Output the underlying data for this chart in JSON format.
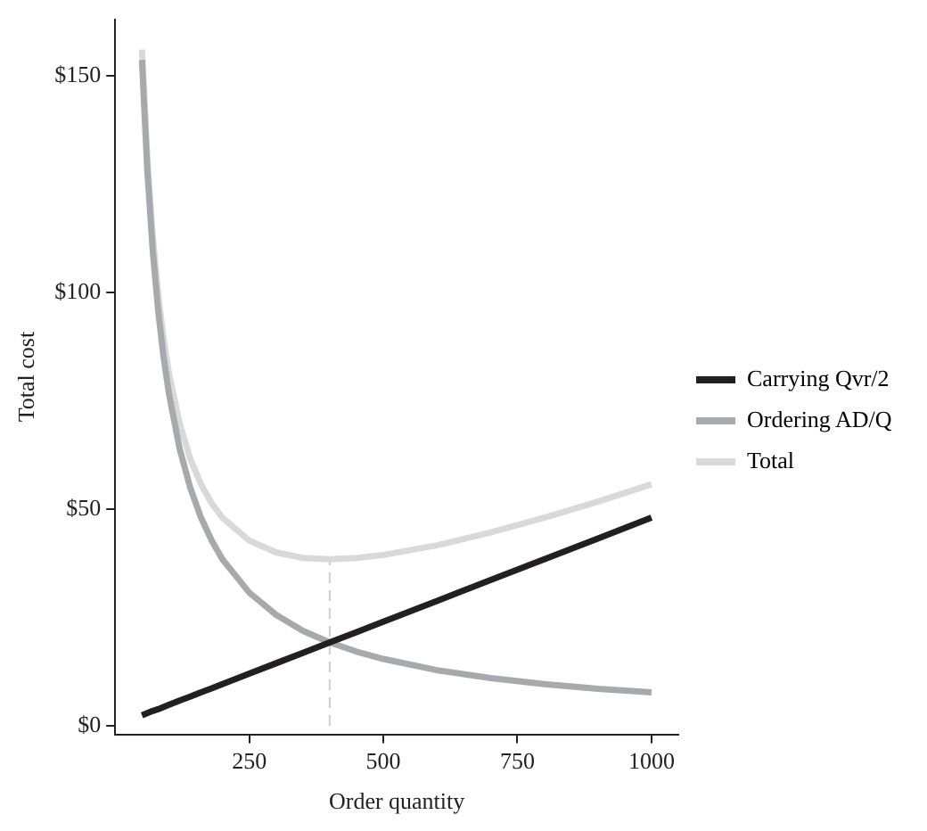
{
  "chart_data": {
    "type": "line",
    "xlabel": "Order quantity",
    "ylabel": "Total cost",
    "xlim": [
      0,
      1050
    ],
    "xticks": [
      250,
      500,
      750,
      1000
    ],
    "ylim": [
      -2,
      163
    ],
    "yticks": [
      {
        "value": 0,
        "label": "$0"
      },
      {
        "value": 50,
        "label": "$50"
      },
      {
        "value": 100,
        "label": "$100"
      },
      {
        "value": 150,
        "label": "$150"
      }
    ],
    "grid": false,
    "legend": "right",
    "marker": "none",
    "x": [
      50,
      60,
      70,
      80,
      90,
      100,
      120,
      140,
      160,
      180,
      200,
      250,
      300,
      350,
      400,
      450,
      500,
      600,
      700,
      800,
      900,
      1000
    ],
    "series": [
      {
        "name": "Carrying Qvr/2",
        "color": "#231f20",
        "values": [
          2.4,
          2.9,
          3.4,
          3.8,
          4.3,
          4.8,
          5.8,
          6.7,
          7.7,
          8.6,
          9.6,
          12,
          14.4,
          16.8,
          19.2,
          21.6,
          24,
          28.8,
          33.6,
          38.4,
          43.2,
          48
        ]
      },
      {
        "name": "Ordering AD/Q",
        "color": "#a7a9ac",
        "values": [
          153.6,
          128,
          109.7,
          96,
          85.3,
          76.8,
          64,
          54.9,
          48,
          42.7,
          38.4,
          30.7,
          25.6,
          21.9,
          19.2,
          17.1,
          15.4,
          12.8,
          11,
          9.6,
          8.5,
          7.7
        ]
      },
      {
        "name": "Total",
        "color": "#d9d9d9",
        "values": [
          156,
          130.9,
          113.1,
          99.8,
          89.6,
          81.6,
          69.8,
          61.6,
          55.7,
          51.3,
          48,
          42.7,
          40,
          38.7,
          38.4,
          38.7,
          39.4,
          41.6,
          44.6,
          48,
          51.7,
          55.7
        ]
      },
      {
        "type": "line",
        "color": "#cfcfcf",
        "line_style": "dashed",
        "x": [
          400,
          400
        ],
        "values": [
          0,
          38.4
        ]
      }
    ]
  }
}
